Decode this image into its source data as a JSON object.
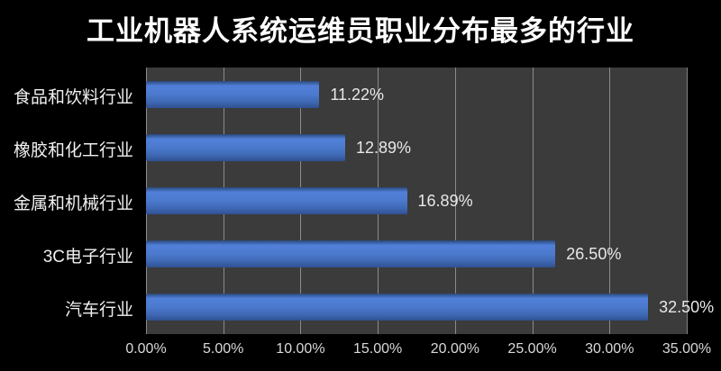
{
  "title": "工业机器人系统运维员职业分布最多的行业",
  "chart_data": {
    "type": "bar",
    "orientation": "horizontal",
    "title": "工业机器人系统运维员职业分布最多的行业",
    "categories": [
      "食品和饮料行业",
      "橡胶和化工行业",
      "金属和机械行业",
      "3C电子行业",
      "汽车行业"
    ],
    "values": [
      11.22,
      12.89,
      16.89,
      26.5,
      32.5
    ],
    "value_labels": [
      "11.22%",
      "12.89%",
      "16.89%",
      "26.50%",
      "32.50%"
    ],
    "xlabel": "",
    "ylabel": "",
    "xlim": [
      0,
      35
    ],
    "x_tick_values": [
      0,
      5,
      10,
      15,
      20,
      25,
      30,
      35
    ],
    "x_tick_labels": [
      "0.00%",
      "5.00%",
      "10.00%",
      "15.00%",
      "20.00%",
      "25.00%",
      "30.00%",
      "35.00%"
    ],
    "grid": true,
    "legend": false,
    "colors": {
      "background": "#000000",
      "plot_background": "#3b3b3b",
      "gridline": "#9a9a9a",
      "bar_top": "#2b4878",
      "bar_highlight": "#5180da",
      "bar_mid": "#4c7ace",
      "bar_low": "#3f68b4",
      "bar_bottom": "#2f5090",
      "title_text": "#ffffff",
      "category_text": "#f0f0f0",
      "value_text": "#e8e8e8",
      "tick_text": "#d9d9d9"
    }
  }
}
